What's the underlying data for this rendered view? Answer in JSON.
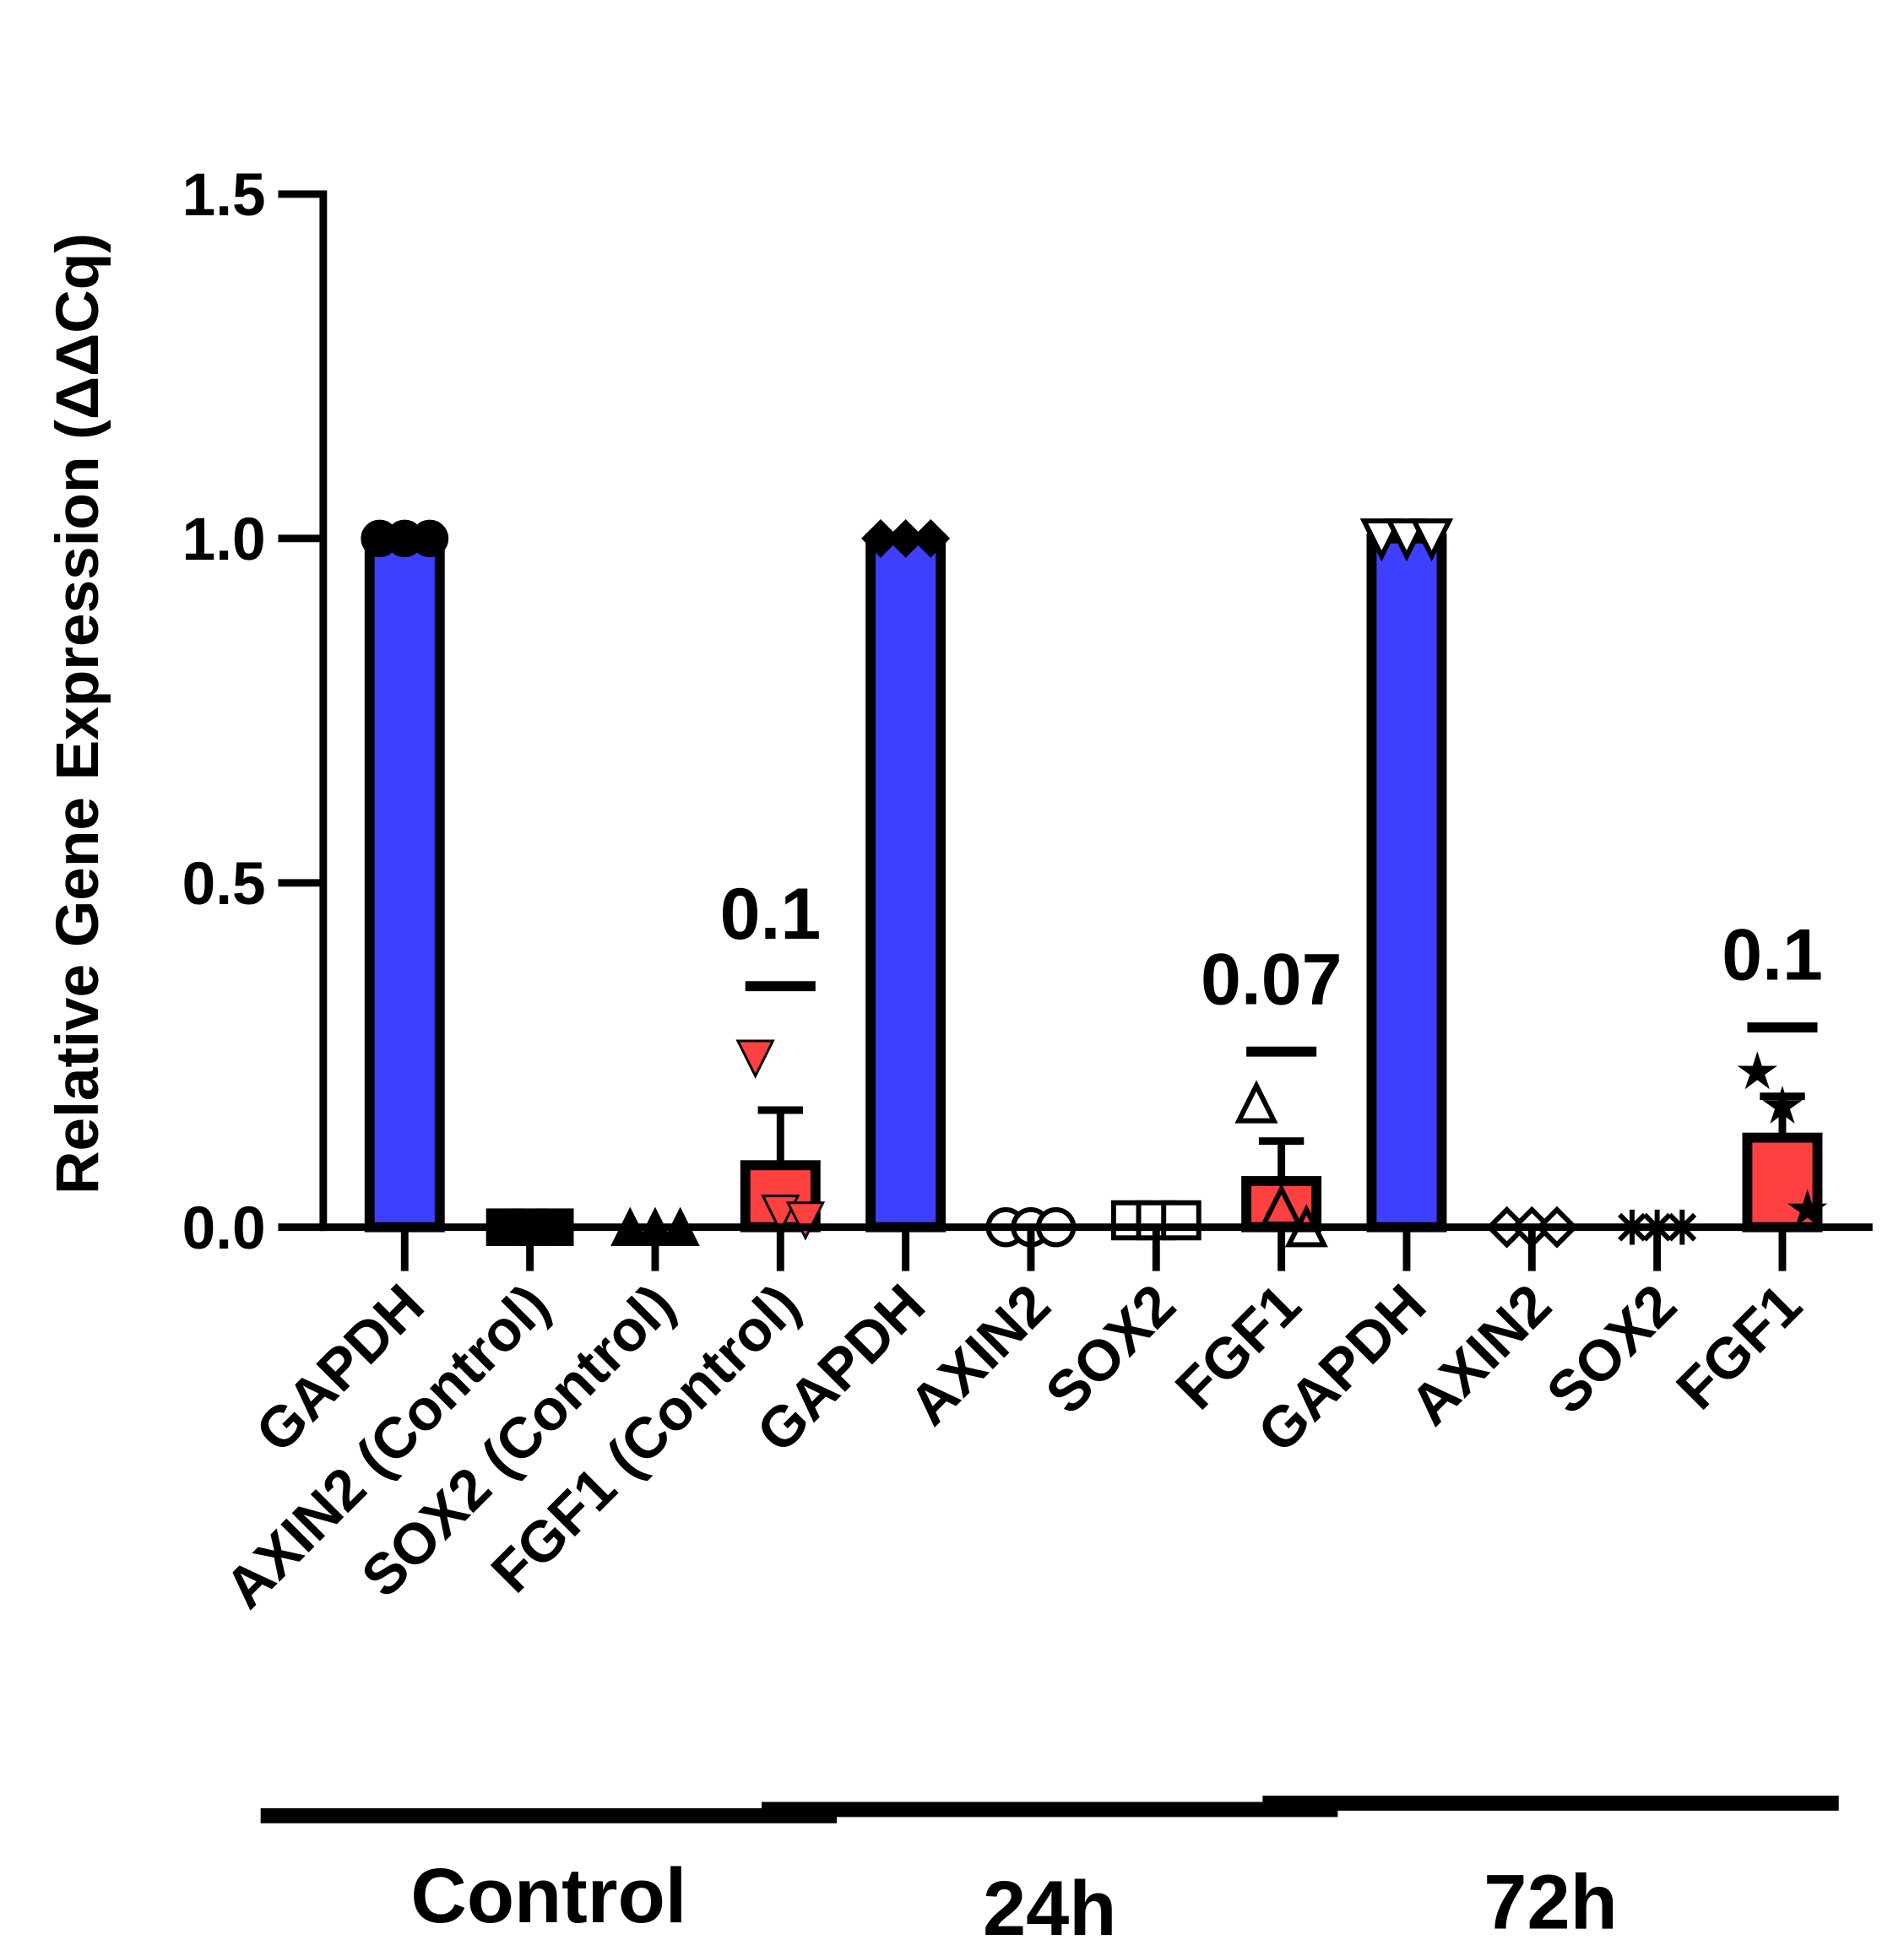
{
  "chart_data": {
    "type": "bar",
    "y_label": "Relative Gene Expression (ΔΔCq)",
    "categories": [
      "GAPDH",
      "AXIN2 (Control)",
      "SOX2 (Control)",
      "FGF1 (Control)",
      "GAPDH",
      "AXIN2",
      "SOX2",
      "FGF1",
      "GAPDH",
      "AXIN2",
      "SOX2",
      "FGF1"
    ],
    "values": [
      1.0,
      0.0,
      0.0,
      0.09,
      1.0,
      0.0,
      0.01,
      0.067,
      1.0,
      0.0,
      0.0,
      0.13
    ],
    "errors": [
      0,
      0,
      0,
      0.08,
      0,
      0,
      0,
      0.058,
      0,
      0,
      0,
      0.06
    ],
    "points": [
      [
        1,
        1,
        1
      ],
      [
        0,
        0,
        0
      ],
      [
        0,
        0,
        0
      ],
      [
        0.245,
        0.02,
        0.01
      ],
      [
        1,
        1,
        1
      ],
      [
        0,
        0,
        0
      ],
      [
        0.01,
        0.01,
        0.01
      ],
      [
        0.18,
        0.03,
        0.0
      ],
      [
        1,
        1,
        1
      ],
      [
        0,
        0,
        0
      ],
      [
        0,
        0,
        0
      ],
      [
        0.225,
        0.175,
        0.025
      ]
    ],
    "markers": [
      "circle",
      "square",
      "triangle",
      "triangle-down",
      "diamond",
      "circle-open",
      "square-open",
      "triangle-open",
      "triangle-down-open",
      "diamond-open",
      "plus",
      "star"
    ],
    "colors": [
      "#3f3fff",
      "#000000",
      "#000000",
      "#ff4040",
      "#3f3fff",
      "#000000",
      "#000000",
      "#ff4040",
      "#3f3fff",
      "#000000",
      "#000000",
      "#ff4040"
    ],
    "annotations": [
      "0.1",
      "0.07",
      "0.1"
    ],
    "groups": [
      "Control",
      "24h",
      "72h"
    ],
    "ylim": [
      0,
      1.5
    ],
    "yticks": [
      {
        "value": 0,
        "label": "0.0"
      },
      0.5,
      {
        "value": 1,
        "label": "1.0"
      },
      1.5
    ]
  }
}
